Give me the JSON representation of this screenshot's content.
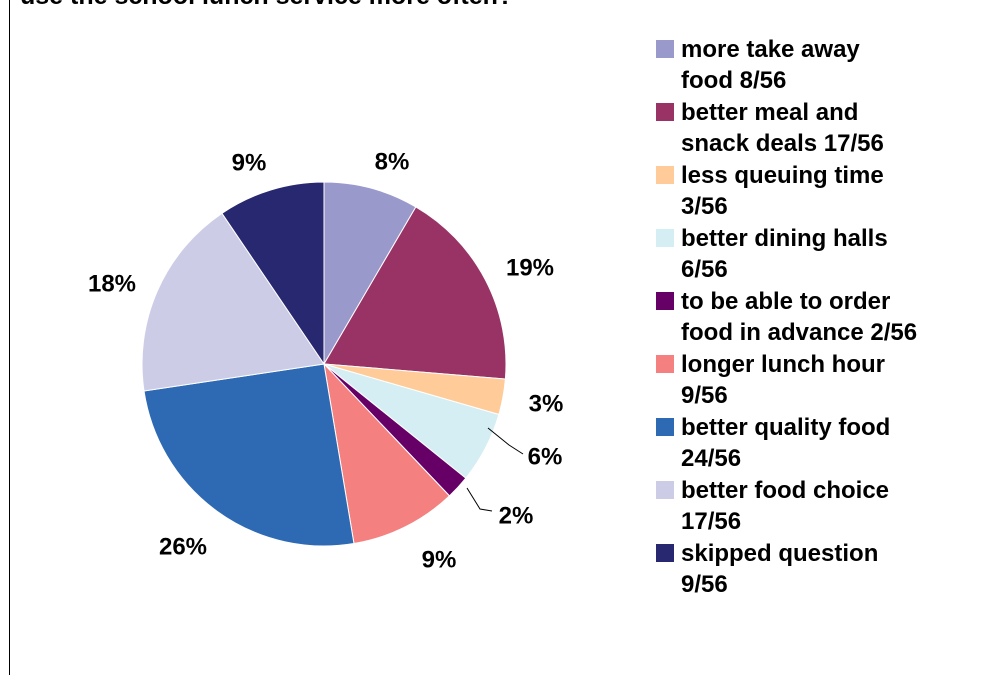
{
  "chart_data": {
    "type": "pie",
    "title": "use the  school lunch service more often?",
    "slices": [
      {
        "label": "more take away food 8/56",
        "value": 8,
        "pct_label": "8%",
        "color": "#9999CC"
      },
      {
        "label": "better meal and snack deals 17/56",
        "value": 17,
        "pct_label": "19%",
        "color": "#993366"
      },
      {
        "label": "less queuing time 3/56",
        "value": 3,
        "pct_label": "3%",
        "color": "#FFCC99"
      },
      {
        "label": "better dining halls 6/56",
        "value": 6,
        "pct_label": "6%",
        "color": "#D5EEF3"
      },
      {
        "label": "to be able to order food in advance 2/56",
        "value": 2,
        "pct_label": "2%",
        "color": "#660066"
      },
      {
        "label": "longer lunch hour 9/56",
        "value": 9,
        "pct_label": "9%",
        "color": "#F58080"
      },
      {
        "label": "better quality food 24/56",
        "value": 24,
        "pct_label": "26%",
        "color": "#2E69B3"
      },
      {
        "label": "better food choice 17/56",
        "value": 17,
        "pct_label": "18%",
        "color": "#CCCCE6"
      },
      {
        "label": "skipped question 9/56",
        "value": 9,
        "pct_label": "9%",
        "color": "#282870"
      }
    ],
    "legend_lines": [
      [
        "more take away",
        "food 8/56"
      ],
      [
        "better meal and",
        "snack deals 17/56"
      ],
      [
        "less queuing time",
        "3/56"
      ],
      [
        "better dining halls",
        "6/56"
      ],
      [
        "to be able to order",
        "food in advance 2/56"
      ],
      [
        "longer lunch hour",
        "9/56"
      ],
      [
        "better quality food",
        "24/56"
      ],
      [
        "better food choice",
        "17/56"
      ],
      [
        "skipped question",
        "9/56"
      ]
    ],
    "legend_position": "right"
  }
}
